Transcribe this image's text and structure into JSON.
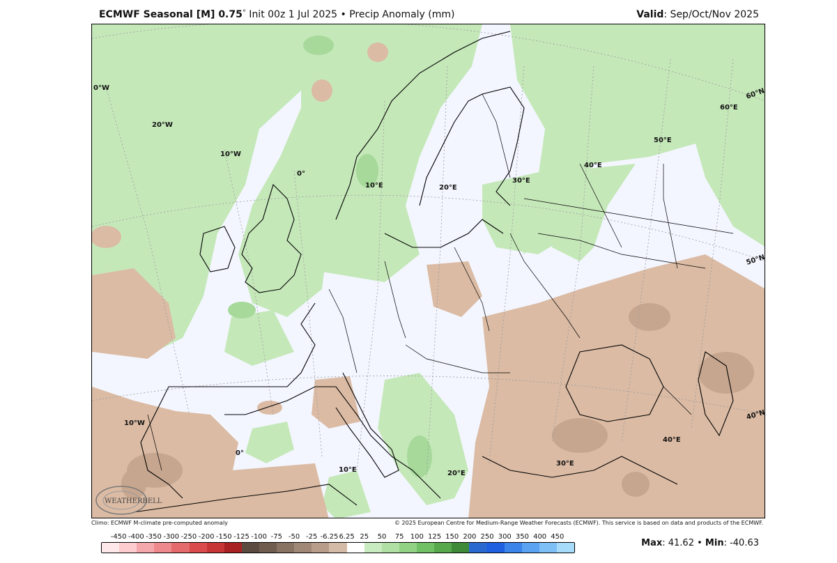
{
  "header": {
    "model": "ECMWF Seasonal [M] 0.75",
    "deg": "°",
    "init": " Init 00z 1 Jul 2025 • Precip Anomaly (mm)",
    "valid_label": "Valid",
    "valid_value": ": Sep/Oct/Nov 2025"
  },
  "map": {
    "graticule_labels": [
      "0°W",
      "20°W",
      "10°W",
      "0°",
      "10°E",
      "20°E",
      "30°E",
      "40°E",
      "50°E",
      "60°E",
      "60°N",
      "50°N",
      "40°N",
      "10°W",
      "0°",
      "10°E",
      "20°E",
      "30°E",
      "40°E"
    ],
    "logo_text": "WEATHERBELL",
    "colors": {
      "near_zero": "#f3f6ff",
      "wet_light": "#c5e8b9",
      "wet_mid": "#a6d99a",
      "dry_light": "#dbbba4",
      "dry_mid": "#c7a68f"
    }
  },
  "footer": {
    "climo": "Climo: ECMWF M-climate pre-computed anomaly",
    "copyright": "© 2025 European Centre for Medium-Range Weather Forecasts (ECMWF). This service is based on data and products of the ECMWF."
  },
  "colorbar": {
    "ticks": [
      "-450",
      "-400",
      "-350",
      "-300",
      "-250",
      "-200",
      "-150",
      "-125",
      "-100",
      "-75",
      "-50",
      "-25",
      "-6.25",
      "6.25",
      "25",
      "50",
      "75",
      "100",
      "125",
      "150",
      "200",
      "250",
      "300",
      "350",
      "400",
      "450"
    ],
    "colors": [
      "#ffe8ea",
      "#fdcccf",
      "#f5a8ac",
      "#ee8a8d",
      "#e46a6b",
      "#d94b4c",
      "#c83536",
      "#a82224",
      "#5a4a40",
      "#705d50",
      "#887261",
      "#a08876",
      "#b89e8a",
      "#d4bba7",
      "#ffffff",
      "#c9ebc0",
      "#b0e0a4",
      "#92d285",
      "#72c066",
      "#57a84c",
      "#3f8a39",
      "#2a6ad0",
      "#1f60e0",
      "#3a84ea",
      "#5aa2f2",
      "#7ec0f6",
      "#a6dcfa"
    ]
  },
  "stats": {
    "max_label": "Max",
    "max_value": ": 41.62 • ",
    "min_label": "Min",
    "min_value": ": -40.63"
  }
}
